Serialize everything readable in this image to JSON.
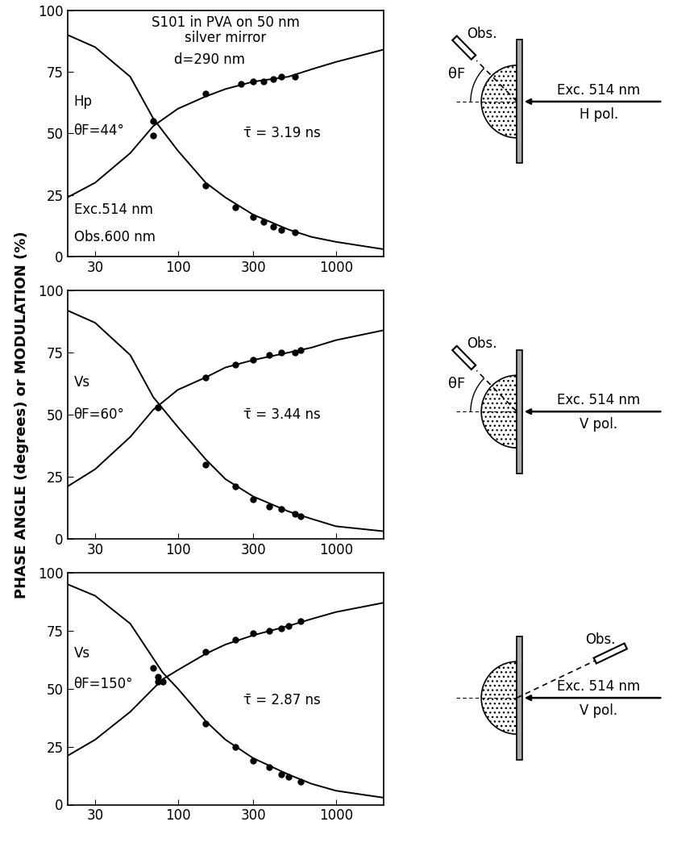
{
  "chart_data": [
    {
      "type": "line",
      "title": "S101 in PVA on 50 nm\nsilver mirror",
      "annotations": [
        "d=290 nm",
        "Hp",
        "θF=44°",
        "τ̄ = 3.19 ns",
        "Exc.514 nm",
        "Obs.600 nm"
      ],
      "diagram": {
        "obs": "Obs.",
        "angle": "θF",
        "exc": "Exc. 514 nm",
        "pol": "H pol."
      },
      "log": "x",
      "xlim": [
        20,
        2000
      ],
      "xticks": [
        30,
        100,
        300,
        1000
      ],
      "ylim": [
        0,
        100
      ],
      "yticks": [
        0,
        25,
        50,
        75,
        100
      ],
      "series": [
        {
          "type": "line",
          "line_style": "solid",
          "color": "#000000",
          "x": [
            20,
            30,
            50,
            70,
            100,
            150,
            200,
            300,
            500,
            700,
            1000,
            2000
          ],
          "values": [
            24,
            30,
            42,
            53,
            60,
            65,
            68,
            71,
            73,
            76,
            79,
            84
          ]
        },
        {
          "type": "line",
          "line_style": "solid",
          "color": "#000000",
          "x": [
            20,
            30,
            50,
            70,
            100,
            150,
            200,
            300,
            500,
            700,
            1000,
            2000
          ],
          "values": [
            90,
            85,
            73,
            56,
            43,
            30,
            24,
            17,
            11,
            8,
            6,
            3
          ]
        },
        {
          "type": "scatter",
          "marker": "o",
          "color": "#000000",
          "x": [
            70,
            150,
            250,
            300,
            350,
            400,
            450,
            550
          ],
          "values": [
            49,
            66,
            70,
            71,
            71,
            72,
            73,
            73
          ]
        },
        {
          "type": "scatter",
          "marker": "o",
          "color": "#000000",
          "x": [
            70,
            150,
            230,
            300,
            350,
            400,
            450,
            550
          ],
          "values": [
            55,
            29,
            20,
            16,
            14,
            12,
            11,
            10
          ]
        }
      ]
    },
    {
      "type": "line",
      "ylabel": "PHASE ANGLE (degrees) or MODULATION (%)",
      "annotations": [
        "Vs",
        "θF=60°",
        "τ̄ = 3.44 ns"
      ],
      "diagram": {
        "obs": "Obs.",
        "angle": "θF",
        "exc": "Exc. 514 nm",
        "pol": "V pol."
      },
      "log": "x",
      "xlim": [
        20,
        2000
      ],
      "xticks": [
        30,
        100,
        300,
        1000
      ],
      "ylim": [
        0,
        100
      ],
      "yticks": [
        0,
        25,
        50,
        75,
        100
      ],
      "series": [
        {
          "type": "line",
          "line_style": "solid",
          "color": "#000000",
          "x": [
            20,
            30,
            50,
            70,
            100,
            150,
            200,
            300,
            500,
            700,
            1000,
            2000
          ],
          "values": [
            21,
            28,
            41,
            52,
            60,
            65,
            69,
            72,
            75,
            77,
            80,
            84
          ]
        },
        {
          "type": "line",
          "line_style": "solid",
          "color": "#000000",
          "x": [
            20,
            30,
            50,
            70,
            100,
            150,
            200,
            300,
            500,
            700,
            1000,
            2000
          ],
          "values": [
            92,
            87,
            74,
            57,
            45,
            32,
            24,
            17,
            11,
            8,
            5,
            3
          ]
        },
        {
          "type": "scatter",
          "marker": "o",
          "color": "#000000",
          "x": [
            75,
            150,
            230,
            300,
            380,
            450,
            550,
            600
          ],
          "values": [
            53,
            65,
            70,
            72,
            74,
            75,
            75,
            76
          ]
        },
        {
          "type": "scatter",
          "marker": "o",
          "color": "#000000",
          "x": [
            75,
            150,
            230,
            300,
            380,
            450,
            550,
            600
          ],
          "values": [
            53,
            30,
            21,
            16,
            13,
            12,
            10,
            9
          ]
        }
      ]
    },
    {
      "type": "line",
      "annotations": [
        "Vs",
        "θF=150°",
        "τ̄ = 2.87 ns"
      ],
      "diagram": {
        "obs": "Obs.",
        "exc": "Exc. 514 nm",
        "pol": "V pol."
      },
      "log": "x",
      "xlim": [
        20,
        2000
      ],
      "xticks": [
        30,
        100,
        300,
        1000
      ],
      "ylim": [
        0,
        100
      ],
      "yticks": [
        0,
        25,
        50,
        75,
        100
      ],
      "series": [
        {
          "type": "line",
          "line_style": "solid",
          "color": "#000000",
          "x": [
            20,
            30,
            50,
            80,
            100,
            150,
            200,
            300,
            500,
            700,
            1000,
            2000
          ],
          "values": [
            21,
            28,
            40,
            54,
            58,
            65,
            69,
            73,
            77,
            80,
            83,
            87
          ]
        },
        {
          "type": "line",
          "line_style": "solid",
          "color": "#000000",
          "x": [
            20,
            30,
            50,
            80,
            100,
            150,
            200,
            300,
            500,
            700,
            1000,
            2000
          ],
          "values": [
            95,
            90,
            78,
            57,
            50,
            36,
            28,
            20,
            13,
            9,
            6,
            3
          ]
        },
        {
          "type": "scatter",
          "marker": "o",
          "color": "#000000",
          "x": [
            75,
            80,
            150,
            230,
            300,
            380,
            450,
            500,
            600
          ],
          "values": [
            55,
            53,
            66,
            71,
            74,
            75,
            76,
            77,
            79
          ]
        },
        {
          "type": "scatter",
          "marker": "o",
          "color": "#000000",
          "x": [
            70,
            75,
            150,
            230,
            300,
            380,
            450,
            500,
            600
          ],
          "values": [
            59,
            53,
            35,
            25,
            19,
            16,
            13,
            12,
            10
          ]
        }
      ]
    }
  ]
}
